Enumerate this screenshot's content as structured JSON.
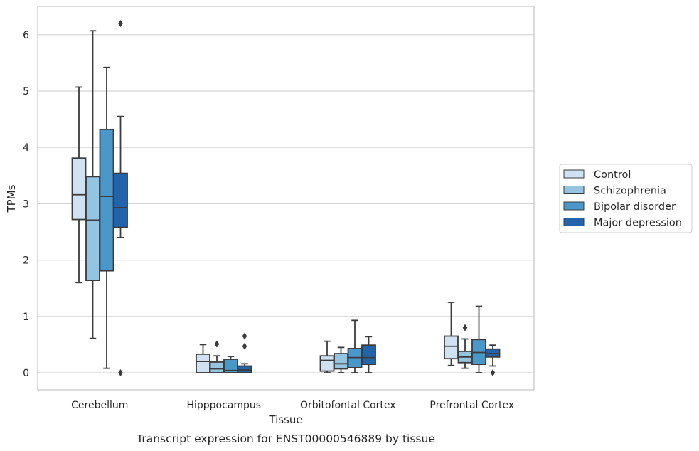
{
  "chart_data": {
    "type": "box",
    "caption": "Transcript expression for ENST00000546889 by tissue",
    "xlabel": "Tissue",
    "ylabel": "TPMs",
    "ylim": [
      -0.3,
      6.5
    ],
    "yticks": [
      0,
      1,
      2,
      3,
      4,
      5,
      6
    ],
    "grid": "horizontal",
    "legend_position": "right",
    "categories": [
      "Cerebellum",
      "Hipppocampus",
      "Orbitofontal Cortex",
      "Prefrontal Cortex"
    ],
    "series": [
      {
        "name": "Control",
        "color": "#d0e1f2",
        "boxes": [
          {
            "whisker_low": 1.6,
            "q1": 2.72,
            "median": 3.16,
            "q3": 3.81,
            "whisker_high": 5.07,
            "outliers": []
          },
          {
            "whisker_low": 0.0,
            "q1": 0.0,
            "median": 0.2,
            "q3": 0.33,
            "whisker_high": 0.5,
            "outliers": []
          },
          {
            "whisker_low": 0.0,
            "q1": 0.03,
            "median": 0.22,
            "q3": 0.3,
            "whisker_high": 0.56,
            "outliers": []
          },
          {
            "whisker_low": 0.13,
            "q1": 0.25,
            "median": 0.47,
            "q3": 0.65,
            "whisker_high": 1.25,
            "outliers": []
          }
        ]
      },
      {
        "name": "Schizophrenia",
        "color": "#94c4df",
        "boxes": [
          {
            "whisker_low": 0.61,
            "q1": 1.64,
            "median": 2.71,
            "q3": 3.48,
            "whisker_high": 6.07,
            "outliers": []
          },
          {
            "whisker_low": 0.0,
            "q1": 0.0,
            "median": 0.07,
            "q3": 0.19,
            "whisker_high": 0.3,
            "outliers": [
              0.51
            ]
          },
          {
            "whisker_low": 0.0,
            "q1": 0.07,
            "median": 0.16,
            "q3": 0.34,
            "whisker_high": 0.45,
            "outliers": []
          },
          {
            "whisker_low": 0.08,
            "q1": 0.18,
            "median": 0.28,
            "q3": 0.38,
            "whisker_high": 0.6,
            "outliers": [
              0.8
            ]
          }
        ]
      },
      {
        "name": "Bipolar disorder",
        "color": "#4a98c9",
        "boxes": [
          {
            "whisker_low": 0.08,
            "q1": 1.81,
            "median": 3.13,
            "q3": 4.32,
            "whisker_high": 5.42,
            "outliers": []
          },
          {
            "whisker_low": 0.0,
            "q1": 0.0,
            "median": 0.04,
            "q3": 0.24,
            "whisker_high": 0.29,
            "outliers": []
          },
          {
            "whisker_low": 0.0,
            "q1": 0.09,
            "median": 0.27,
            "q3": 0.43,
            "whisker_high": 0.93,
            "outliers": []
          },
          {
            "whisker_low": 0.0,
            "q1": 0.15,
            "median": 0.36,
            "q3": 0.59,
            "whisker_high": 1.18,
            "outliers": []
          }
        ]
      },
      {
        "name": "Major depression",
        "color": "#2164ab",
        "boxes": [
          {
            "whisker_low": 2.4,
            "q1": 2.58,
            "median": 2.93,
            "q3": 3.54,
            "whisker_high": 4.55,
            "outliers": [
              0.0,
              6.2
            ]
          },
          {
            "whisker_low": 0.0,
            "q1": 0.0,
            "median": 0.05,
            "q3": 0.12,
            "whisker_high": 0.16,
            "outliers": [
              0.47,
              0.65
            ]
          },
          {
            "whisker_low": 0.0,
            "q1": 0.15,
            "median": 0.27,
            "q3": 0.49,
            "whisker_high": 0.64,
            "outliers": []
          },
          {
            "whisker_low": 0.12,
            "q1": 0.28,
            "median": 0.34,
            "q3": 0.42,
            "whisker_high": 0.49,
            "outliers": [
              0.0
            ]
          }
        ]
      }
    ]
  }
}
